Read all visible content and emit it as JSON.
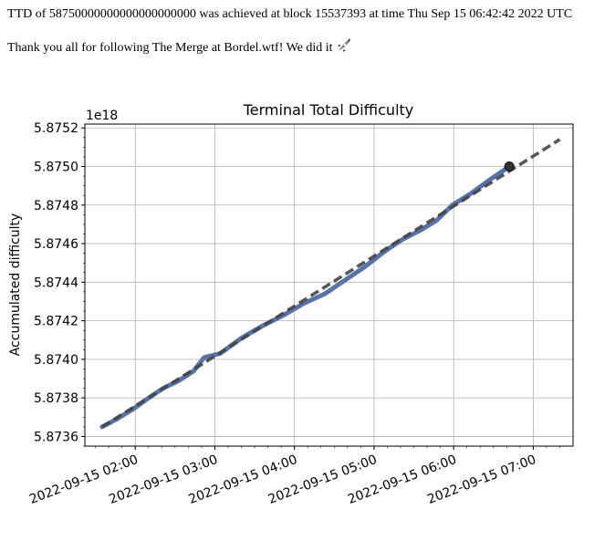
{
  "header": {
    "line1": "TTD of 58750000000000000000000 was achieved at block 15537393 at time Thu Sep 15 06:42:42 2022 UTC",
    "line2": "Thank you all for following The Merge at Bordel.wtf! We did it",
    "icon": "rocket-icon"
  },
  "chart_data": {
    "type": "line",
    "title": "Terminal Total Difficulty",
    "ylabel": "Accumulated difficulty",
    "xlabel": "",
    "offset_label": "1e18",
    "grid": true,
    "ylim": [
      5.87355,
      5.87522
    ],
    "xlim": [
      "2022-09-15 01:22:00",
      "2022-09-15 07:30:00"
    ],
    "y_ticks": [
      "5.8736",
      "5.8738",
      "5.8740",
      "5.8742",
      "5.8744",
      "5.8746",
      "5.8748",
      "5.8750",
      "5.8752"
    ],
    "y_tick_values": [
      5.8736,
      5.8738,
      5.874,
      5.8742,
      5.8744,
      5.8746,
      5.8748,
      5.875,
      5.8752
    ],
    "x_ticks": [
      "2022-09-15 02:00",
      "2022-09-15 03:00",
      "2022-09-15 04:00",
      "2022-09-15 05:00",
      "2022-09-15 06:00",
      "2022-09-15 07:00"
    ],
    "series": [
      {
        "style": "solid",
        "color": "#5873a8",
        "points": [
          [
            "2022-09-15 01:35",
            5.87365
          ],
          [
            "2022-09-15 01:46",
            5.87369
          ],
          [
            "2022-09-15 01:58",
            5.87374
          ],
          [
            "2022-09-15 02:08",
            5.87379
          ],
          [
            "2022-09-15 02:21",
            5.87385
          ],
          [
            "2022-09-15 02:33",
            5.87389
          ],
          [
            "2022-09-15 02:44",
            5.87394
          ],
          [
            "2022-09-15 02:52",
            5.87401
          ],
          [
            "2022-09-15 03:04",
            5.87403
          ],
          [
            "2022-09-15 03:20",
            5.87411
          ],
          [
            "2022-09-15 03:35",
            5.87417
          ],
          [
            "2022-09-15 03:52",
            5.87423
          ],
          [
            "2022-09-15 04:07",
            5.87429
          ],
          [
            "2022-09-15 04:23",
            5.87434
          ],
          [
            "2022-09-15 04:38",
            5.87441
          ],
          [
            "2022-09-15 04:53",
            5.87448
          ],
          [
            "2022-09-15 05:08",
            5.87456
          ],
          [
            "2022-09-15 05:21",
            5.87462
          ],
          [
            "2022-09-15 05:35",
            5.87467
          ],
          [
            "2022-09-15 05:47",
            5.87472
          ],
          [
            "2022-09-15 05:59",
            5.8748
          ],
          [
            "2022-09-15 06:13",
            5.87486
          ],
          [
            "2022-09-15 06:27",
            5.87493
          ],
          [
            "2022-09-15 06:42",
            5.875
          ]
        ]
      },
      {
        "style": "dashed",
        "color": "#444444",
        "points": [
          [
            "2022-09-15 01:35",
            5.87365
          ],
          [
            "2022-09-15 07:20",
            5.87514
          ]
        ]
      }
    ],
    "marker": {
      "x": "2022-09-15 06:42",
      "y": 5.875,
      "color": "#333333"
    }
  }
}
